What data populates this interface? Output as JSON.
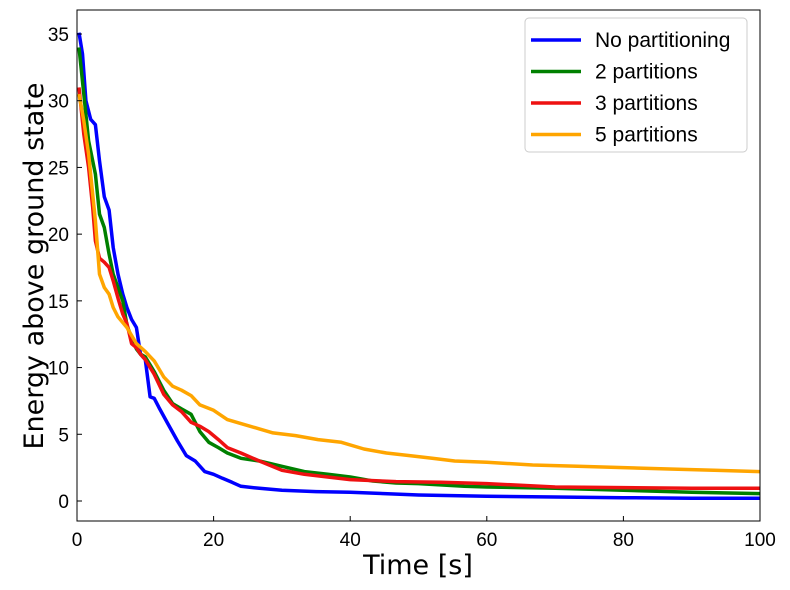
{
  "chart_data": {
    "type": "line",
    "title": "",
    "xlabel": "Time [s]",
    "ylabel": "Energy above ground state",
    "xlim": [
      0,
      100
    ],
    "ylim": [
      -1.5,
      36.8
    ],
    "xticks": [
      0,
      20,
      40,
      60,
      80,
      100
    ],
    "yticks": [
      0,
      5,
      10,
      15,
      20,
      25,
      30,
      35
    ],
    "grid": false,
    "legend_position": "top-right",
    "series": [
      {
        "name": "No partitioning",
        "color": "#0000ff",
        "points": [
          [
            0.3,
            35.1
          ],
          [
            0.8,
            33.5
          ],
          [
            1.3,
            30.0
          ],
          [
            2.0,
            28.6
          ],
          [
            2.7,
            28.2
          ],
          [
            3.3,
            25.5
          ],
          [
            4.0,
            22.8
          ],
          [
            4.7,
            21.8
          ],
          [
            5.3,
            19.0
          ],
          [
            6.0,
            17.0
          ],
          [
            6.7,
            15.5
          ],
          [
            7.3,
            14.5
          ],
          [
            8.0,
            13.6
          ],
          [
            8.7,
            13.0
          ],
          [
            9.3,
            11.0
          ],
          [
            10.0,
            10.6
          ],
          [
            10.7,
            7.8
          ],
          [
            11.3,
            7.7
          ],
          [
            12.0,
            7.0
          ],
          [
            13.3,
            5.8
          ],
          [
            14.7,
            4.5
          ],
          [
            16.0,
            3.4
          ],
          [
            17.3,
            3.0
          ],
          [
            18.7,
            2.2
          ],
          [
            20.0,
            2.0
          ],
          [
            21.3,
            1.7
          ],
          [
            22.7,
            1.4
          ],
          [
            24.0,
            1.1
          ],
          [
            26.7,
            0.95
          ],
          [
            30.0,
            0.8
          ],
          [
            35.0,
            0.7
          ],
          [
            40.0,
            0.65
          ],
          [
            45.0,
            0.55
          ],
          [
            50.0,
            0.45
          ],
          [
            60.0,
            0.35
          ],
          [
            70.0,
            0.3
          ],
          [
            80.0,
            0.25
          ],
          [
            90.0,
            0.2
          ],
          [
            100.0,
            0.2
          ]
        ]
      },
      {
        "name": "2 partitions",
        "color": "#008000",
        "points": [
          [
            0.3,
            34.0
          ],
          [
            1.0,
            30.5
          ],
          [
            1.7,
            27.0
          ],
          [
            2.7,
            24.5
          ],
          [
            3.3,
            21.5
          ],
          [
            4.0,
            20.5
          ],
          [
            4.7,
            18.5
          ],
          [
            5.3,
            17.0
          ],
          [
            6.0,
            16.0
          ],
          [
            6.7,
            15.0
          ],
          [
            7.3,
            13.2
          ],
          [
            8.0,
            12.2
          ],
          [
            8.7,
            11.4
          ],
          [
            9.3,
            11.0
          ],
          [
            10.0,
            10.8
          ],
          [
            11.3,
            9.7
          ],
          [
            12.7,
            8.3
          ],
          [
            14.0,
            7.3
          ],
          [
            15.3,
            6.9
          ],
          [
            16.7,
            6.5
          ],
          [
            18.0,
            5.2
          ],
          [
            19.3,
            4.4
          ],
          [
            20.7,
            4.0
          ],
          [
            22.0,
            3.6
          ],
          [
            24.0,
            3.2
          ],
          [
            26.7,
            3.0
          ],
          [
            30.0,
            2.6
          ],
          [
            33.3,
            2.2
          ],
          [
            36.7,
            2.0
          ],
          [
            40.0,
            1.8
          ],
          [
            43.3,
            1.5
          ],
          [
            46.7,
            1.35
          ],
          [
            50.0,
            1.3
          ],
          [
            56.7,
            1.1
          ],
          [
            60.0,
            1.05
          ],
          [
            70.0,
            0.95
          ],
          [
            80.0,
            0.8
          ],
          [
            90.0,
            0.65
          ],
          [
            100.0,
            0.55
          ]
        ]
      },
      {
        "name": "3 partitions",
        "color": "#ee1111",
        "points": [
          [
            0.3,
            31.0
          ],
          [
            1.0,
            27.5
          ],
          [
            1.7,
            25.0
          ],
          [
            2.3,
            22.0
          ],
          [
            2.7,
            19.5
          ],
          [
            3.3,
            18.2
          ],
          [
            4.0,
            17.9
          ],
          [
            4.7,
            17.5
          ],
          [
            5.3,
            16.5
          ],
          [
            6.0,
            15.2
          ],
          [
            6.7,
            14.0
          ],
          [
            7.3,
            13.3
          ],
          [
            8.0,
            11.8
          ],
          [
            8.7,
            11.5
          ],
          [
            9.3,
            11.0
          ],
          [
            10.0,
            10.6
          ],
          [
            11.3,
            9.5
          ],
          [
            12.7,
            8.0
          ],
          [
            14.0,
            7.2
          ],
          [
            15.3,
            6.7
          ],
          [
            16.7,
            5.9
          ],
          [
            18.0,
            5.6
          ],
          [
            19.3,
            5.2
          ],
          [
            20.7,
            4.6
          ],
          [
            22.0,
            4.0
          ],
          [
            24.0,
            3.6
          ],
          [
            26.7,
            3.0
          ],
          [
            30.0,
            2.3
          ],
          [
            33.3,
            2.0
          ],
          [
            36.7,
            1.8
          ],
          [
            40.0,
            1.6
          ],
          [
            46.7,
            1.45
          ],
          [
            53.3,
            1.4
          ],
          [
            60.0,
            1.3
          ],
          [
            70.0,
            1.05
          ],
          [
            80.0,
            1.0
          ],
          [
            90.0,
            0.95
          ],
          [
            100.0,
            0.95
          ]
        ]
      },
      {
        "name": "5 partitions",
        "color": "#ffa500",
        "points": [
          [
            0.3,
            30.5
          ],
          [
            1.0,
            28.5
          ],
          [
            1.7,
            26.0
          ],
          [
            2.7,
            21.0
          ],
          [
            3.3,
            17.0
          ],
          [
            4.0,
            16.0
          ],
          [
            4.7,
            15.5
          ],
          [
            5.3,
            14.5
          ],
          [
            6.0,
            13.8
          ],
          [
            7.3,
            13.0
          ],
          [
            8.7,
            11.8
          ],
          [
            10.0,
            11.2
          ],
          [
            11.3,
            10.5
          ],
          [
            12.7,
            9.3
          ],
          [
            14.0,
            8.6
          ],
          [
            15.3,
            8.3
          ],
          [
            16.7,
            7.9
          ],
          [
            18.0,
            7.2
          ],
          [
            20.0,
            6.8
          ],
          [
            22.0,
            6.1
          ],
          [
            24.0,
            5.8
          ],
          [
            26.7,
            5.4
          ],
          [
            28.7,
            5.1
          ],
          [
            32.0,
            4.9
          ],
          [
            35.3,
            4.6
          ],
          [
            38.7,
            4.4
          ],
          [
            42.0,
            3.9
          ],
          [
            45.3,
            3.6
          ],
          [
            48.7,
            3.4
          ],
          [
            52.0,
            3.2
          ],
          [
            55.3,
            3.0
          ],
          [
            60.0,
            2.9
          ],
          [
            66.7,
            2.7
          ],
          [
            73.3,
            2.6
          ],
          [
            80.0,
            2.5
          ],
          [
            86.7,
            2.4
          ],
          [
            93.3,
            2.3
          ],
          [
            100.0,
            2.2
          ]
        ]
      }
    ]
  }
}
